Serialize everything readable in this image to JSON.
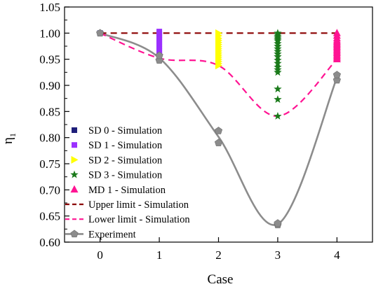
{
  "chart_data": {
    "type": "scatter",
    "title": "",
    "xlabel": "Case",
    "ylabel": "η",
    "ylabel_subscript": "1",
    "xlim": [
      -0.6,
      4.6
    ],
    "ylim": [
      0.6,
      1.05
    ],
    "x_ticks": [
      0,
      1,
      2,
      3,
      4
    ],
    "x_tick_labels": [
      "0",
      "1",
      "2",
      "3",
      "4"
    ],
    "y_ticks": [
      0.6,
      0.65,
      0.7,
      0.75,
      0.8,
      0.85,
      0.9,
      0.95,
      1.0,
      1.05
    ],
    "y_tick_labels": [
      "0.60",
      "0.65",
      "0.70",
      "0.75",
      "0.80",
      "0.85",
      "0.90",
      "0.95",
      "1.00",
      "1.05"
    ],
    "grid": false,
    "legend_position": "lower-left",
    "series": [
      {
        "name": "SD 0 - Simulation",
        "marker": "square",
        "color": "#1f1f7a",
        "x": [
          0
        ],
        "y": [
          1.0
        ]
      },
      {
        "name": "SD 1 - Simulation",
        "marker": "square",
        "color": "#9b30ff",
        "x": [
          1,
          1,
          1,
          1,
          1,
          1,
          1,
          1,
          1,
          1,
          1,
          1,
          1
        ],
        "y": [
          0.955,
          0.959,
          0.963,
          0.967,
          0.971,
          0.975,
          0.979,
          0.983,
          0.987,
          0.991,
          0.995,
          0.999,
          1.003
        ]
      },
      {
        "name": "SD 2 - Simulation",
        "marker": "triangle-right",
        "color": "#ffff00",
        "x": [
          2,
          2,
          2,
          2,
          2,
          2,
          2,
          2,
          2,
          2,
          2,
          2,
          2,
          2,
          2,
          2
        ],
        "y": [
          0.938,
          0.942,
          0.946,
          0.95,
          0.954,
          0.958,
          0.962,
          0.966,
          0.97,
          0.974,
          0.978,
          0.982,
          0.986,
          0.99,
          0.995,
          1.0
        ]
      },
      {
        "name": "SD 3 - Simulation",
        "marker": "star",
        "color": "#1a7a1a",
        "x": [
          3,
          3,
          3,
          3,
          3,
          3,
          3,
          3,
          3,
          3,
          3,
          3,
          3,
          3,
          3,
          3,
          3,
          3,
          3,
          3
        ],
        "y": [
          0.841,
          0.873,
          0.893,
          0.925,
          0.93,
          0.935,
          0.942,
          0.948,
          0.955,
          0.96,
          0.965,
          0.97,
          0.975,
          0.98,
          0.985,
          0.988,
          0.991,
          0.994,
          0.997,
          1.0
        ]
      },
      {
        "name": "MD 1 - Simulation",
        "marker": "triangle-up",
        "color": "#ff1493",
        "x": [
          4,
          4,
          4,
          4,
          4,
          4,
          4,
          4,
          4,
          4,
          4,
          4,
          4,
          4,
          4,
          4
        ],
        "y": [
          0.95,
          0.953,
          0.956,
          0.959,
          0.962,
          0.965,
          0.968,
          0.971,
          0.974,
          0.977,
          0.98,
          0.983,
          0.986,
          0.99,
          0.995,
          1.0
        ]
      },
      {
        "name": "Upper limit - Simulation",
        "style": "dashed-line",
        "color": "#8b0000",
        "x": [
          0,
          1,
          2,
          3,
          4
        ],
        "y": [
          1.0,
          1.0,
          1.0,
          1.0,
          1.0
        ]
      },
      {
        "name": "Lower limit - Simulation",
        "style": "dashed-smooth-line",
        "color": "#ff1493",
        "x": [
          0,
          1,
          2,
          3,
          4
        ],
        "y": [
          1.0,
          0.952,
          0.938,
          0.841,
          0.95
        ]
      },
      {
        "name": "Experiment",
        "style": "line-pentagon",
        "color": "#8c8c8c",
        "x": [
          0,
          1,
          1,
          2,
          2,
          3,
          3,
          4,
          4
        ],
        "y": [
          1.0,
          0.948,
          0.957,
          0.79,
          0.813,
          0.633,
          0.636,
          0.91,
          0.92
        ]
      }
    ]
  }
}
